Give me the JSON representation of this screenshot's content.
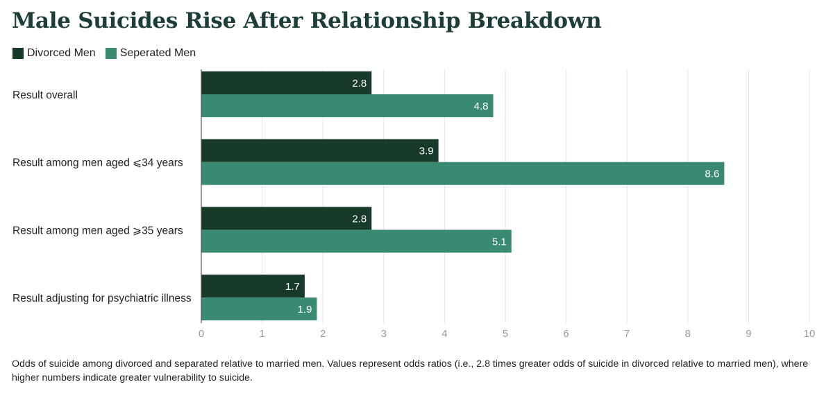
{
  "chart_data": {
    "type": "bar",
    "orientation": "horizontal",
    "title": "Male Suicides Rise After Relationship Breakdown",
    "categories": [
      "Result overall",
      "Result among men aged ⩽34 years",
      "Result among men aged ⩾35 years",
      "Result adjusting for psychiatric illness"
    ],
    "series": [
      {
        "name": "Divorced Men",
        "color": "#173a29",
        "values": [
          2.8,
          3.9,
          2.8,
          1.7
        ]
      },
      {
        "name": "Seperated Men",
        "color": "#3a8a73",
        "values": [
          4.8,
          8.6,
          5.1,
          1.9
        ]
      }
    ],
    "xlim": [
      0,
      10
    ],
    "xticks": [
      0,
      1,
      2,
      3,
      4,
      5,
      6,
      7,
      8,
      9,
      10
    ],
    "xlabel": "",
    "ylabel": "",
    "grid": true,
    "legend_position": "top-left"
  },
  "footnote": "Odds of suicide among divorced and separated relative to married men. Values represent odds ratios (i.e., 2.8 times greater odds of suicide in divorced relative to married men), where higher numbers indicate greater vulnerability to suicide."
}
